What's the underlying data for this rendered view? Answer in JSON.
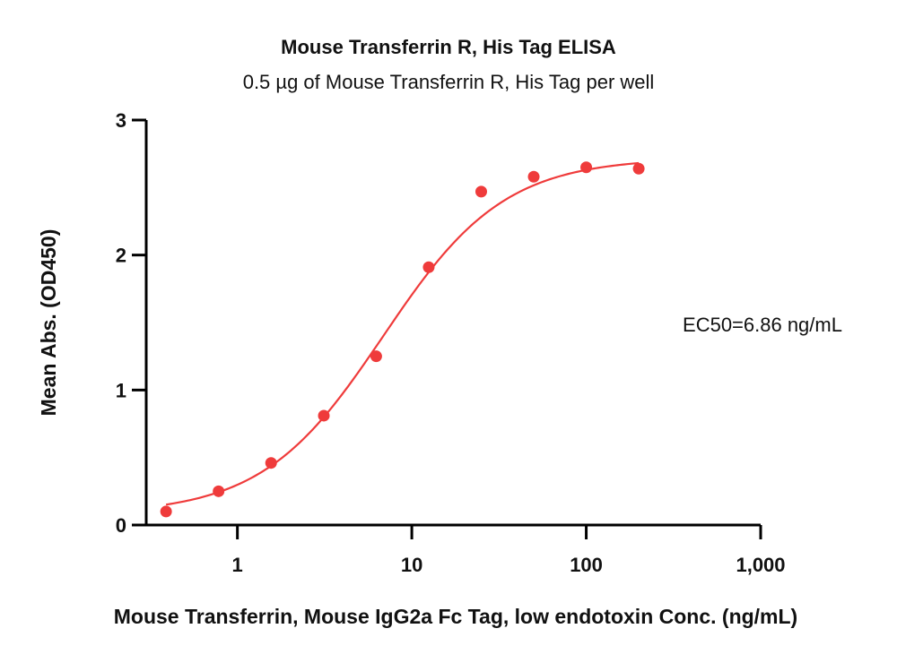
{
  "chart_data": {
    "type": "scatter",
    "title": "Mouse Transferrin R, His Tag ELISA",
    "subtitle": "0.5 µg of Mouse Transferrin R, His Tag per well",
    "xlabel": "Mouse Transferrin, Mouse IgG2a Fc Tag, low endotoxin Conc. (ng/mL)",
    "ylabel": "Mean Abs. (OD450)",
    "x_scale": "log",
    "xlim": [
      0.3,
      1000
    ],
    "ylim": [
      0,
      3
    ],
    "x_ticks": [
      1,
      10,
      100,
      1000
    ],
    "x_tick_labels": [
      "1",
      "10",
      "100",
      "1,000"
    ],
    "y_ticks": [
      0,
      1,
      2,
      3
    ],
    "y_tick_labels": [
      "0",
      "1",
      "2",
      "3"
    ],
    "grid": false,
    "series": [
      {
        "color": "#ef3b3b",
        "x": [
          0.39,
          0.78,
          1.56,
          3.13,
          6.25,
          12.5,
          25,
          50,
          100,
          200
        ],
        "y": [
          0.1,
          0.25,
          0.46,
          0.81,
          1.25,
          1.91,
          2.47,
          2.58,
          2.65,
          2.64
        ],
        "fit": {
          "model": "4PL",
          "bottom": 0.08,
          "top": 2.72,
          "ec50": 6.86,
          "hill": 1.25,
          "x_range": [
            0.39,
            200
          ]
        }
      }
    ],
    "annotations": [
      {
        "text": "EC50=6.86 ng/mL"
      }
    ]
  }
}
